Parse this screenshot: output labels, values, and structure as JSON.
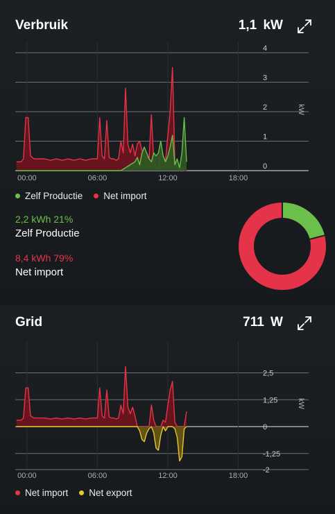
{
  "colors": {
    "self_production": "#6ac04a",
    "net_import": "#e5344a",
    "net_export": "#e8c531",
    "grid_line": "#8a8f94",
    "axis_text": "#a9afb4"
  },
  "usage_card": {
    "title": "Verbruik",
    "value": "1,1 kW",
    "expand_icon": "expand-icon",
    "legend": [
      {
        "label": "Zelf Productie",
        "color": "#6ac04a"
      },
      {
        "label": "Net import",
        "color": "#e5344a"
      }
    ],
    "stats": [
      {
        "amount": "2,2 kWh 21%",
        "label": "Zelf Productie",
        "color": "#6ac04a"
      },
      {
        "amount": "8,4 kWh 79%",
        "label": "Net import",
        "color": "#e5344a"
      }
    ],
    "donut": {
      "self_production_pct": 21,
      "net_import_pct": 79
    }
  },
  "grid_card": {
    "title": "Grid",
    "value": "711 W",
    "expand_icon": "expand-icon",
    "legend": [
      {
        "label": "Net import",
        "color": "#e5344a"
      },
      {
        "label": "Net export",
        "color": "#e8c531"
      }
    ]
  },
  "chart_data": [
    {
      "type": "area",
      "title": "",
      "xlabel": "",
      "ylabel": "kW",
      "x_ticks": [
        "00:00",
        "06:00",
        "12:00",
        "18:00"
      ],
      "y_ticks": [
        "4",
        "3",
        "2",
        "1",
        "0"
      ],
      "xlim": [
        -1,
        24
      ],
      "ylim": [
        0,
        4
      ],
      "grid": true,
      "legend_position": "bottom-left",
      "x": [
        -0.9,
        -0.5,
        -0.3,
        -0.1,
        0.1,
        0.3,
        0.6,
        1,
        1.5,
        2,
        2.5,
        3,
        3.5,
        4,
        4.5,
        5,
        5.5,
        6,
        6.2,
        6.4,
        6.6,
        6.8,
        7,
        7.2,
        7.4,
        7.6,
        7.8,
        8,
        8.2,
        8.4,
        8.6,
        8.8,
        9,
        9.2,
        9.4,
        9.6,
        9.8,
        10,
        10.2,
        10.4,
        10.6,
        10.8,
        11,
        11.2,
        11.4,
        11.6,
        11.8,
        12,
        12.2,
        12.4,
        12.6,
        12.8,
        13,
        13.2,
        13.4,
        13.6
      ],
      "series": [
        {
          "name": "Net import",
          "values": [
            0.3,
            0.3,
            0.4,
            1.8,
            1.8,
            0.5,
            0.4,
            0.4,
            0.4,
            0.35,
            0.4,
            0.35,
            0.4,
            0.35,
            0.4,
            0.35,
            0.4,
            0.4,
            1.8,
            0.5,
            0.4,
            1.7,
            0.45,
            0.4,
            0.4,
            0.35,
            0.4,
            1.0,
            0.6,
            2.8,
            0.9,
            0.6,
            0.9,
            0.5,
            0.9,
            1.0,
            0.7,
            0.5,
            0.45,
            0.4,
            1.9,
            0.3,
            0.1,
            0.1,
            0.6,
            0.5,
            0.3,
            1.2,
            2.0,
            3.5,
            0.3,
            0.1,
            0.0,
            0.1,
            0.0,
            0.0
          ]
        },
        {
          "name": "Zelf Productie",
          "values": [
            0,
            0,
            0,
            0,
            0,
            0,
            0,
            0,
            0,
            0,
            0,
            0,
            0,
            0,
            0,
            0,
            0,
            0,
            0,
            0,
            0,
            0,
            0,
            0,
            0,
            0,
            0,
            0,
            0.05,
            0.1,
            0.15,
            0.2,
            0.25,
            0.3,
            0.45,
            0.2,
            0.6,
            0.8,
            0.6,
            0.4,
            0.3,
            0.6,
            0.5,
            0.6,
            1.0,
            0.5,
            0.3,
            0.5,
            0.8,
            1.2,
            0.2,
            0.4,
            0.1,
            0.6,
            1.8,
            0.3
          ]
        }
      ]
    },
    {
      "type": "area",
      "title": "",
      "xlabel": "",
      "ylabel": "kW",
      "x_ticks": [
        "00:00",
        "06:00",
        "12:00",
        "18:00"
      ],
      "y_ticks": [
        "2,5",
        "1,25",
        "0",
        "-1,25",
        "-2"
      ],
      "xlim": [
        -1,
        24
      ],
      "ylim": [
        -2,
        3
      ],
      "grid": true,
      "legend_position": "bottom-left",
      "x": [
        -0.9,
        -0.5,
        -0.3,
        -0.1,
        0.1,
        0.3,
        0.6,
        1,
        1.5,
        2,
        2.5,
        3,
        3.5,
        4,
        4.5,
        5,
        5.5,
        6,
        6.2,
        6.4,
        6.6,
        6.8,
        7,
        7.2,
        7.4,
        7.6,
        7.8,
        8,
        8.2,
        8.4,
        8.6,
        8.8,
        9,
        9.2,
        9.4,
        9.6,
        9.8,
        10,
        10.2,
        10.4,
        10.6,
        10.8,
        11,
        11.2,
        11.4,
        11.6,
        11.8,
        12,
        12.2,
        12.4,
        12.6,
        12.8,
        13,
        13.2,
        13.4,
        13.6
      ],
      "series": [
        {
          "name": "Net import",
          "values": [
            0.3,
            0.3,
            0.4,
            1.8,
            1.8,
            0.5,
            0.4,
            0.4,
            0.4,
            0.35,
            0.4,
            0.35,
            0.4,
            0.35,
            0.4,
            0.35,
            0.4,
            0.4,
            1.8,
            0.5,
            0.4,
            1.7,
            0.45,
            0.4,
            0.4,
            0.35,
            0.4,
            1.0,
            0.6,
            2.8,
            0.9,
            0.6,
            0.9,
            0.5,
            0,
            0,
            0,
            0,
            0,
            0,
            1.0,
            0.3,
            0,
            0,
            0,
            0.3,
            0.2,
            1.0,
            1.7,
            2.1,
            0.2,
            0,
            0,
            0,
            0,
            0.7
          ]
        },
        {
          "name": "Net export",
          "values": [
            0,
            0,
            0,
            0,
            0,
            0,
            0,
            0,
            0,
            0,
            0,
            0,
            0,
            0,
            0,
            0,
            0,
            0,
            0,
            0,
            0,
            0,
            0,
            0,
            0,
            0,
            0,
            0,
            0,
            0,
            0,
            0,
            0,
            0,
            0,
            -0.2,
            -0.6,
            -0.7,
            -0.3,
            -0.1,
            0,
            -0.3,
            -1.0,
            -1.1,
            -0.4,
            0,
            -0.2,
            0,
            0,
            0,
            -0.1,
            -0.5,
            -1.6,
            -1.4,
            -0.1,
            0
          ]
        }
      ]
    }
  ]
}
